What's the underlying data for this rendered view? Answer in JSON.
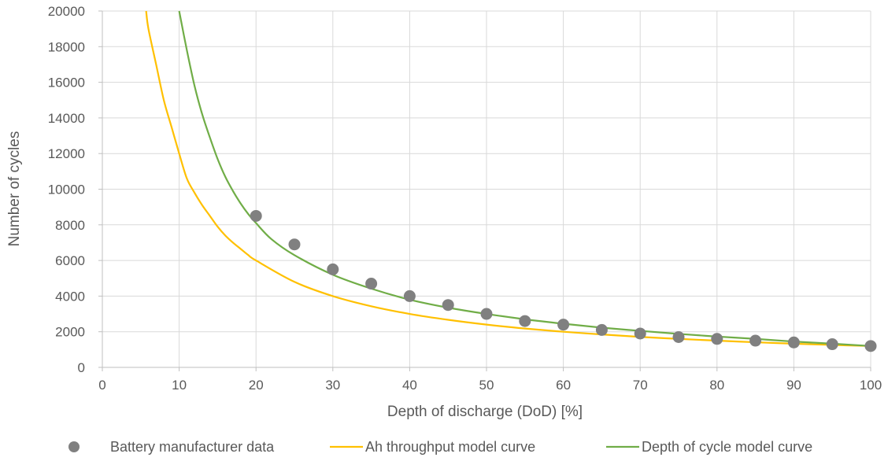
{
  "chart_data": {
    "type": "scatter",
    "title": "",
    "xlabel": "Depth of discharge (DoD) [%]",
    "ylabel": "Number of cycles",
    "xlim": [
      0,
      100
    ],
    "ylim": [
      0,
      20000
    ],
    "x_ticks": [
      "0",
      "10",
      "20",
      "30",
      "40",
      "50",
      "60",
      "70",
      "80",
      "90",
      "100"
    ],
    "y_ticks": [
      "0",
      "2000",
      "4000",
      "6000",
      "8000",
      "10000",
      "12000",
      "14000",
      "16000",
      "18000",
      "20000"
    ],
    "grid": true,
    "legend_position": "bottom",
    "series": [
      {
        "name": "Battery manufacturer data",
        "kind": "scatter",
        "color": "#808080",
        "x": [
          20,
          25,
          30,
          35,
          40,
          45,
          50,
          55,
          60,
          65,
          70,
          75,
          80,
          85,
          90,
          95,
          100
        ],
        "y": [
          8500,
          6900,
          5500,
          4700,
          4000,
          3500,
          3000,
          2600,
          2400,
          2100,
          1900,
          1700,
          1600,
          1500,
          1400,
          1300,
          1200
        ]
      },
      {
        "name": "Ah throughput model curve",
        "kind": "line",
        "color": "#ffc000",
        "x": [
          5.7,
          6,
          7,
          8,
          9,
          10,
          11,
          12,
          13,
          14,
          15,
          16,
          17,
          18,
          19,
          20,
          25,
          30,
          35,
          40,
          45,
          50,
          55,
          60,
          65,
          70,
          75,
          80,
          85,
          90,
          95,
          100
        ],
        "y": [
          20000,
          19000,
          17000,
          15000,
          13500,
          12000,
          10600,
          9800,
          9100,
          8500,
          7900,
          7400,
          7000,
          6650,
          6300,
          6000,
          4800,
          4000,
          3430,
          3000,
          2670,
          2400,
          2180,
          2000,
          1850,
          1710,
          1600,
          1500,
          1410,
          1330,
          1260,
          1200
        ]
      },
      {
        "name": "Depth of cycle model curve",
        "kind": "line",
        "color": "#70ad47",
        "x": [
          10,
          11,
          12,
          13,
          14,
          15,
          16,
          17,
          18,
          19,
          20,
          22,
          25,
          30,
          35,
          40,
          45,
          50,
          55,
          60,
          65,
          70,
          75,
          80,
          85,
          90,
          95,
          100
        ],
        "y": [
          20000,
          17800,
          15800,
          14200,
          12900,
          11700,
          10700,
          9900,
          9200,
          8600,
          8100,
          7200,
          6300,
          5200,
          4420,
          3800,
          3350,
          3000,
          2700,
          2450,
          2230,
          2050,
          1880,
          1730,
          1600,
          1450,
          1330,
          1200
        ]
      }
    ]
  }
}
